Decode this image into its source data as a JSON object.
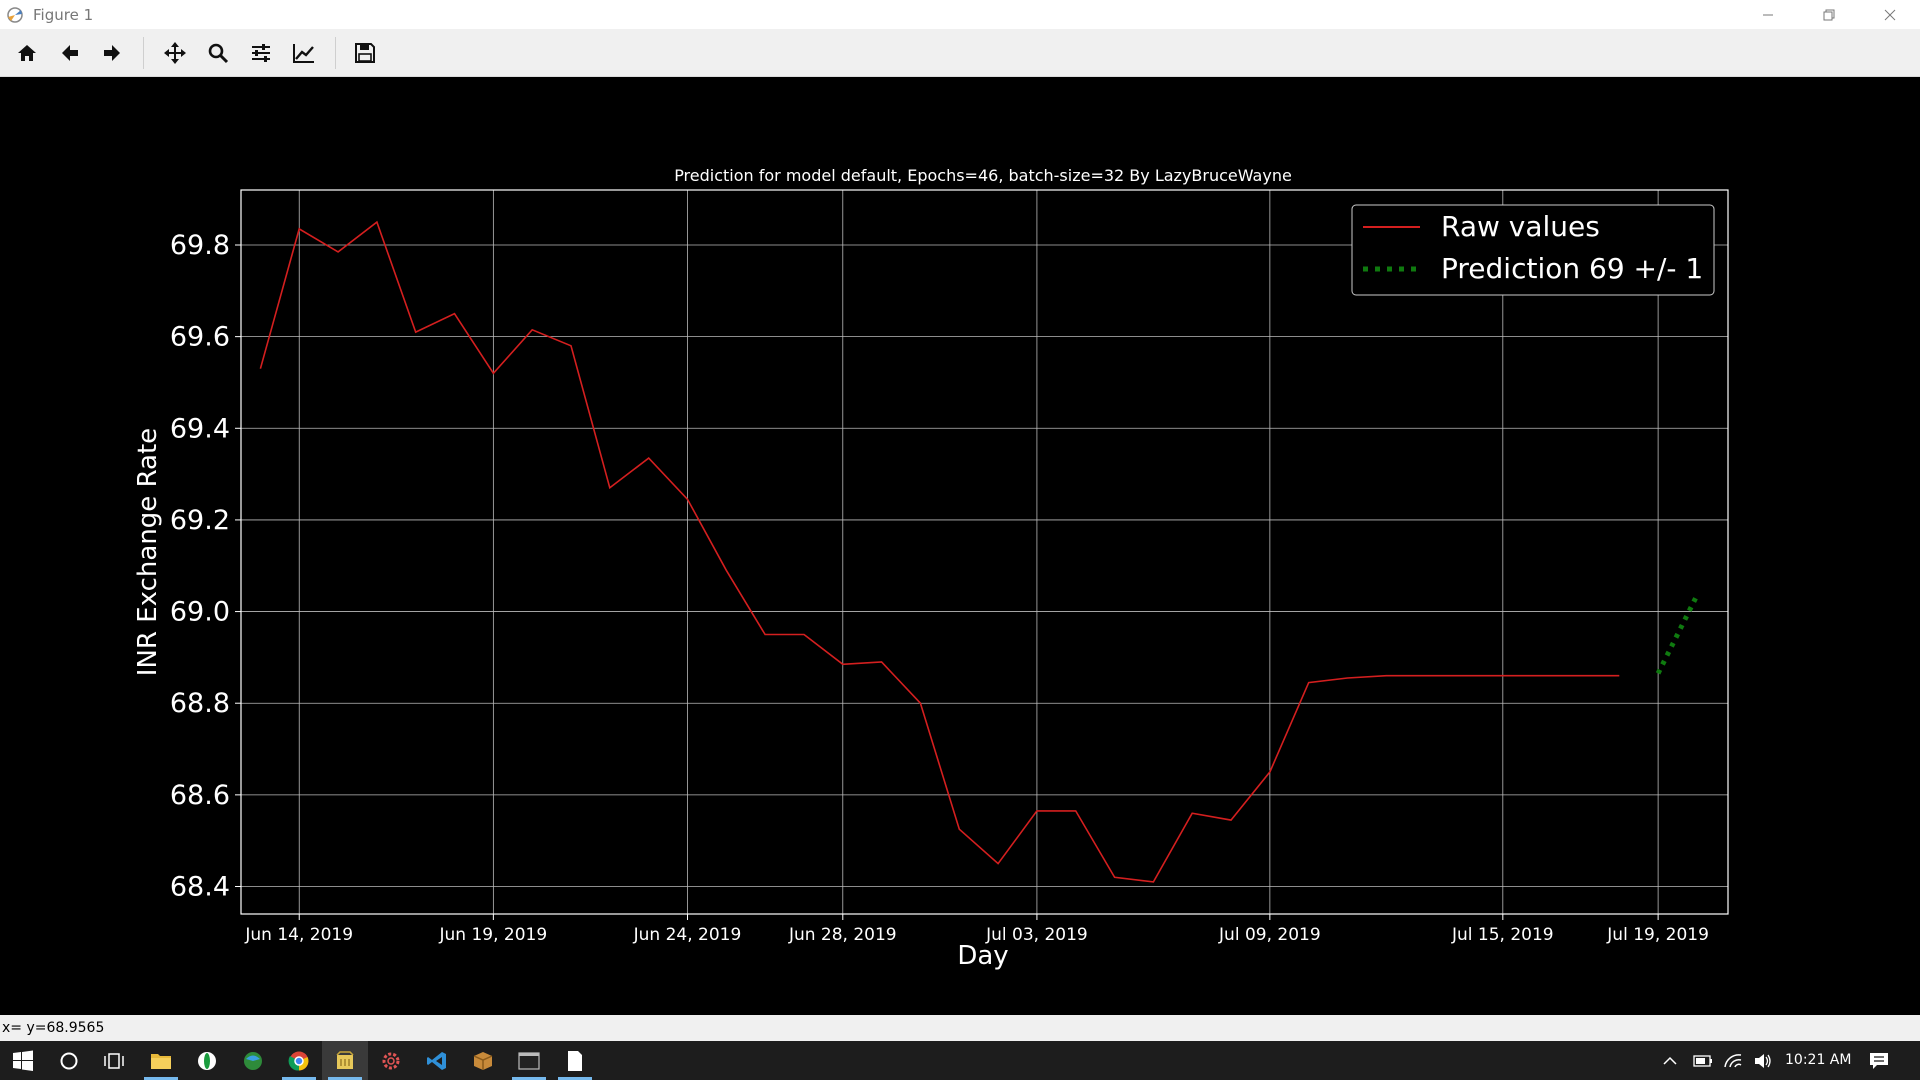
{
  "window": {
    "title": "Figure 1"
  },
  "toolbar": {
    "buttons": [
      {
        "name": "home-icon"
      },
      {
        "name": "back-arrow-icon"
      },
      {
        "name": "forward-arrow-icon"
      },
      {
        "name": "pan-icon"
      },
      {
        "name": "zoom-icon"
      },
      {
        "name": "configure-subplots-icon"
      },
      {
        "name": "edit-axis-icon"
      },
      {
        "name": "save-icon"
      }
    ]
  },
  "chart_data": {
    "type": "line",
    "title": "Prediction for model default, Epochs=46, batch-size=32 By LazyBruceWayne",
    "xlabel": "Day",
    "ylabel": "INR Exchange Rate",
    "x_ticks": [
      "Jun 14, 2019",
      "Jun 19, 2019",
      "Jun 24, 2019",
      "Jun 28, 2019",
      "Jul 03, 2019",
      "Jul 09, 2019",
      "Jul 15, 2019",
      "Jul 19, 2019"
    ],
    "y_ticks": [
      "68.4",
      "68.6",
      "68.8",
      "69.0",
      "69.2",
      "69.4",
      "69.6",
      "69.8"
    ],
    "ylim": [
      68.34,
      69.92
    ],
    "grid": true,
    "legend_position": "upper-right",
    "series": [
      {
        "name": "Raw values",
        "color": "#d41f1f",
        "style": "solid",
        "x": [
          "2019-06-13",
          "2019-06-14",
          "2019-06-15",
          "2019-06-16",
          "2019-06-17",
          "2019-06-18",
          "2019-06-19",
          "2019-06-20",
          "2019-06-21",
          "2019-06-22",
          "2019-06-23",
          "2019-06-24",
          "2019-06-25",
          "2019-06-26",
          "2019-06-27",
          "2019-06-28",
          "2019-06-29",
          "2019-06-30",
          "2019-07-01",
          "2019-07-02",
          "2019-07-03",
          "2019-07-04",
          "2019-07-05",
          "2019-07-06",
          "2019-07-07",
          "2019-07-08",
          "2019-07-09",
          "2019-07-10",
          "2019-07-11",
          "2019-07-12",
          "2019-07-13",
          "2019-07-14",
          "2019-07-15",
          "2019-07-16",
          "2019-07-17",
          "2019-07-18"
        ],
        "y": [
          69.53,
          69.835,
          69.785,
          69.85,
          69.61,
          69.65,
          69.52,
          69.615,
          69.58,
          69.27,
          69.335,
          69.245,
          69.09,
          68.95,
          68.95,
          68.885,
          68.89,
          68.8,
          68.525,
          68.45,
          68.565,
          68.565,
          68.42,
          68.41,
          68.56,
          68.545,
          68.65,
          68.845,
          68.855,
          68.86,
          68.86,
          68.86,
          68.86,
          68.86,
          68.86,
          68.86
        ]
      },
      {
        "name": "Prediction 69 +/- 1",
        "color": "#0f7a0f",
        "style": "dotted",
        "x": [
          "2019-07-19",
          "2019-07-20"
        ],
        "y": [
          68.865,
          69.035
        ]
      }
    ]
  },
  "status": {
    "text": "x= y=68.9565"
  },
  "taskbar": {
    "clock": "10:21 AM",
    "apps": [
      {
        "name": "windows-start-icon"
      },
      {
        "name": "cortana-icon"
      },
      {
        "name": "task-view-icon"
      },
      {
        "name": "file-explorer-icon"
      },
      {
        "name": "app-icon-green"
      },
      {
        "name": "app-icon-edge"
      },
      {
        "name": "chrome-icon"
      },
      {
        "name": "python-figure-icon"
      },
      {
        "name": "settings-gear-icon"
      },
      {
        "name": "vscode-icon"
      },
      {
        "name": "package-icon"
      },
      {
        "name": "terminal-icon"
      },
      {
        "name": "notepad-icon"
      }
    ]
  }
}
